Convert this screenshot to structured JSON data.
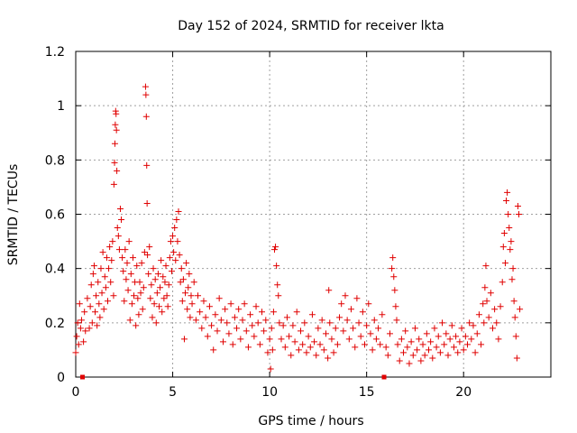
{
  "chart_data": {
    "type": "scatter",
    "title": "Day 152 of 2024, SRMTID for receiver lkta",
    "xlabel": "GPS time / hours",
    "ylabel": "SRMTID / TECUs",
    "xlim": [
      0,
      24.5
    ],
    "ylim": [
      0,
      1.2
    ],
    "xticks": [
      0,
      5,
      10,
      15,
      20
    ],
    "xtick_labels": [
      "0",
      "5",
      "10",
      "15",
      "20"
    ],
    "yticks": [
      0,
      0.2,
      0.4,
      0.6,
      0.8,
      1.0,
      1.2
    ],
    "ytick_labels": [
      "0",
      "0.2",
      "0.4",
      "0.6",
      "0.8",
      "1",
      "1.2"
    ],
    "grid": true,
    "marker": "+",
    "color": "#e00000",
    "gap_markers_x": [
      0.35,
      15.9
    ],
    "series": [
      {
        "name": "SRMTID",
        "points": [
          [
            0.0,
            0.09
          ],
          [
            0.05,
            0.15
          ],
          [
            0.1,
            0.2
          ],
          [
            0.15,
            0.12
          ],
          [
            0.2,
            0.27
          ],
          [
            0.25,
            0.18
          ],
          [
            0.3,
            0.21
          ],
          [
            0.4,
            0.13
          ],
          [
            0.45,
            0.24
          ],
          [
            0.5,
            0.17
          ],
          [
            0.6,
            0.29
          ],
          [
            0.7,
            0.18
          ],
          [
            0.75,
            0.26
          ],
          [
            0.8,
            0.34
          ],
          [
            0.85,
            0.2
          ],
          [
            0.9,
            0.38
          ],
          [
            0.95,
            0.41
          ],
          [
            1.0,
            0.24
          ],
          [
            1.05,
            0.3
          ],
          [
            1.1,
            0.19
          ],
          [
            1.15,
            0.35
          ],
          [
            1.2,
            0.27
          ],
          [
            1.25,
            0.22
          ],
          [
            1.3,
            0.4
          ],
          [
            1.35,
            0.31
          ],
          [
            1.4,
            0.46
          ],
          [
            1.45,
            0.25
          ],
          [
            1.5,
            0.37
          ],
          [
            1.55,
            0.33
          ],
          [
            1.6,
            0.44
          ],
          [
            1.65,
            0.28
          ],
          [
            1.7,
            0.4
          ],
          [
            1.75,
            0.48
          ],
          [
            1.8,
            0.35
          ],
          [
            1.85,
            0.43
          ],
          [
            1.9,
            0.5
          ],
          [
            1.95,
            0.3
          ],
          [
            1.97,
            0.71
          ],
          [
            2.0,
            0.79
          ],
          [
            2.02,
            0.86
          ],
          [
            2.04,
            0.93
          ],
          [
            2.06,
            0.98
          ],
          [
            2.08,
            0.97
          ],
          [
            2.1,
            0.91
          ],
          [
            2.12,
            0.76
          ],
          [
            2.15,
            0.55
          ],
          [
            2.2,
            0.52
          ],
          [
            2.25,
            0.47
          ],
          [
            2.3,
            0.62
          ],
          [
            2.35,
            0.58
          ],
          [
            2.4,
            0.44
          ],
          [
            2.45,
            0.39
          ],
          [
            2.5,
            0.28
          ],
          [
            2.55,
            0.47
          ],
          [
            2.6,
            0.36
          ],
          [
            2.65,
            0.42
          ],
          [
            2.7,
            0.32
          ],
          [
            2.75,
            0.5
          ],
          [
            2.8,
            0.21
          ],
          [
            2.85,
            0.38
          ],
          [
            2.9,
            0.27
          ],
          [
            2.95,
            0.44
          ],
          [
            3.0,
            0.3
          ],
          [
            3.05,
            0.35
          ],
          [
            3.1,
            0.19
          ],
          [
            3.15,
            0.41
          ],
          [
            3.2,
            0.29
          ],
          [
            3.25,
            0.23
          ],
          [
            3.3,
            0.35
          ],
          [
            3.35,
            0.31
          ],
          [
            3.4,
            0.42
          ],
          [
            3.45,
            0.25
          ],
          [
            3.5,
            0.33
          ],
          [
            3.55,
            0.46
          ],
          [
            3.6,
            1.07
          ],
          [
            3.62,
            1.04
          ],
          [
            3.64,
            0.96
          ],
          [
            3.66,
            0.78
          ],
          [
            3.68,
            0.64
          ],
          [
            3.7,
            0.45
          ],
          [
            3.75,
            0.38
          ],
          [
            3.8,
            0.48
          ],
          [
            3.85,
            0.29
          ],
          [
            3.9,
            0.34
          ],
          [
            3.95,
            0.22
          ],
          [
            4.0,
            0.4
          ],
          [
            4.05,
            0.27
          ],
          [
            4.1,
            0.36
          ],
          [
            4.15,
            0.2
          ],
          [
            4.2,
            0.31
          ],
          [
            4.25,
            0.38
          ],
          [
            4.3,
            0.26
          ],
          [
            4.35,
            0.33
          ],
          [
            4.4,
            0.43
          ],
          [
            4.45,
            0.24
          ],
          [
            4.5,
            0.37
          ],
          [
            4.55,
            0.29
          ],
          [
            4.6,
            0.35
          ],
          [
            4.65,
            0.41
          ],
          [
            4.7,
            0.3
          ],
          [
            4.75,
            0.26
          ],
          [
            4.8,
            0.34
          ],
          [
            4.85,
            0.44
          ],
          [
            4.9,
            0.5
          ],
          [
            4.95,
            0.39
          ],
          [
            5.0,
            0.52
          ],
          [
            5.05,
            0.46
          ],
          [
            5.1,
            0.55
          ],
          [
            5.15,
            0.43
          ],
          [
            5.2,
            0.58
          ],
          [
            5.25,
            0.5
          ],
          [
            5.3,
            0.61
          ],
          [
            5.35,
            0.45
          ],
          [
            5.4,
            0.35
          ],
          [
            5.45,
            0.4
          ],
          [
            5.5,
            0.28
          ],
          [
            5.55,
            0.36
          ],
          [
            5.6,
            0.14
          ],
          [
            5.65,
            0.31
          ],
          [
            5.7,
            0.42
          ],
          [
            5.75,
            0.25
          ],
          [
            5.8,
            0.33
          ],
          [
            5.85,
            0.38
          ],
          [
            5.9,
            0.22
          ],
          [
            5.95,
            0.3
          ],
          [
            6.0,
            0.27
          ],
          [
            6.1,
            0.35
          ],
          [
            6.2,
            0.21
          ],
          [
            6.3,
            0.3
          ],
          [
            6.4,
            0.24
          ],
          [
            6.5,
            0.18
          ],
          [
            6.6,
            0.28
          ],
          [
            6.7,
            0.22
          ],
          [
            6.8,
            0.15
          ],
          [
            6.9,
            0.26
          ],
          [
            7.0,
            0.19
          ],
          [
            7.1,
            0.1
          ],
          [
            7.2,
            0.23
          ],
          [
            7.3,
            0.17
          ],
          [
            7.4,
            0.29
          ],
          [
            7.5,
            0.21
          ],
          [
            7.6,
            0.13
          ],
          [
            7.7,
            0.25
          ],
          [
            7.8,
            0.2
          ],
          [
            7.9,
            0.16
          ],
          [
            8.0,
            0.27
          ],
          [
            8.1,
            0.12
          ],
          [
            8.2,
            0.22
          ],
          [
            8.3,
            0.18
          ],
          [
            8.4,
            0.25
          ],
          [
            8.5,
            0.14
          ],
          [
            8.6,
            0.21
          ],
          [
            8.7,
            0.27
          ],
          [
            8.8,
            0.17
          ],
          [
            8.9,
            0.11
          ],
          [
            9.0,
            0.23
          ],
          [
            9.1,
            0.19
          ],
          [
            9.2,
            0.15
          ],
          [
            9.3,
            0.26
          ],
          [
            9.4,
            0.2
          ],
          [
            9.5,
            0.12
          ],
          [
            9.6,
            0.24
          ],
          [
            9.7,
            0.17
          ],
          [
            9.8,
            0.21
          ],
          [
            9.9,
            0.09
          ],
          [
            10.0,
            0.14
          ],
          [
            10.05,
            0.03
          ],
          [
            10.1,
            0.18
          ],
          [
            10.15,
            0.1
          ],
          [
            10.2,
            0.24
          ],
          [
            10.25,
            0.47
          ],
          [
            10.3,
            0.48
          ],
          [
            10.35,
            0.41
          ],
          [
            10.4,
            0.34
          ],
          [
            10.45,
            0.3
          ],
          [
            10.5,
            0.2
          ],
          [
            10.6,
            0.14
          ],
          [
            10.7,
            0.19
          ],
          [
            10.8,
            0.11
          ],
          [
            10.9,
            0.22
          ],
          [
            11.0,
            0.15
          ],
          [
            11.1,
            0.08
          ],
          [
            11.2,
            0.19
          ],
          [
            11.3,
            0.13
          ],
          [
            11.4,
            0.24
          ],
          [
            11.5,
            0.1
          ],
          [
            11.6,
            0.17
          ],
          [
            11.7,
            0.12
          ],
          [
            11.8,
            0.2
          ],
          [
            11.9,
            0.09
          ],
          [
            12.0,
            0.15
          ],
          [
            12.1,
            0.11
          ],
          [
            12.2,
            0.23
          ],
          [
            12.3,
            0.13
          ],
          [
            12.4,
            0.08
          ],
          [
            12.5,
            0.18
          ],
          [
            12.6,
            0.12
          ],
          [
            12.7,
            0.21
          ],
          [
            12.8,
            0.1
          ],
          [
            12.9,
            0.16
          ],
          [
            13.0,
            0.07
          ],
          [
            13.05,
            0.32
          ],
          [
            13.1,
            0.2
          ],
          [
            13.2,
            0.14
          ],
          [
            13.3,
            0.09
          ],
          [
            13.4,
            0.18
          ],
          [
            13.5,
            0.12
          ],
          [
            13.6,
            0.22
          ],
          [
            13.7,
            0.27
          ],
          [
            13.8,
            0.17
          ],
          [
            13.9,
            0.3
          ],
          [
            14.0,
            0.21
          ],
          [
            14.1,
            0.14
          ],
          [
            14.2,
            0.25
          ],
          [
            14.3,
            0.18
          ],
          [
            14.4,
            0.11
          ],
          [
            14.5,
            0.29
          ],
          [
            14.6,
            0.2
          ],
          [
            14.7,
            0.15
          ],
          [
            14.8,
            0.24
          ],
          [
            14.9,
            0.12
          ],
          [
            15.0,
            0.19
          ],
          [
            15.1,
            0.27
          ],
          [
            15.2,
            0.16
          ],
          [
            15.3,
            0.1
          ],
          [
            15.4,
            0.21
          ],
          [
            15.5,
            0.14
          ],
          [
            15.6,
            0.18
          ],
          [
            15.7,
            0.12
          ],
          [
            15.8,
            0.23
          ],
          [
            16.0,
            0.11
          ],
          [
            16.1,
            0.08
          ],
          [
            16.2,
            0.16
          ],
          [
            16.3,
            0.4
          ],
          [
            16.35,
            0.44
          ],
          [
            16.4,
            0.37
          ],
          [
            16.45,
            0.32
          ],
          [
            16.5,
            0.26
          ],
          [
            16.55,
            0.21
          ],
          [
            16.6,
            0.12
          ],
          [
            16.7,
            0.06
          ],
          [
            16.8,
            0.14
          ],
          [
            16.9,
            0.09
          ],
          [
            17.0,
            0.17
          ],
          [
            17.1,
            0.11
          ],
          [
            17.2,
            0.05
          ],
          [
            17.3,
            0.13
          ],
          [
            17.4,
            0.08
          ],
          [
            17.5,
            0.18
          ],
          [
            17.6,
            0.1
          ],
          [
            17.7,
            0.14
          ],
          [
            17.8,
            0.06
          ],
          [
            17.9,
            0.12
          ],
          [
            18.0,
            0.08
          ],
          [
            18.1,
            0.16
          ],
          [
            18.2,
            0.1
          ],
          [
            18.3,
            0.13
          ],
          [
            18.4,
            0.07
          ],
          [
            18.5,
            0.18
          ],
          [
            18.6,
            0.11
          ],
          [
            18.7,
            0.15
          ],
          [
            18.8,
            0.09
          ],
          [
            18.9,
            0.2
          ],
          [
            19.0,
            0.12
          ],
          [
            19.1,
            0.16
          ],
          [
            19.2,
            0.08
          ],
          [
            19.3,
            0.14
          ],
          [
            19.4,
            0.19
          ],
          [
            19.5,
            0.11
          ],
          [
            19.6,
            0.15
          ],
          [
            19.7,
            0.09
          ],
          [
            19.8,
            0.13
          ],
          [
            19.9,
            0.18
          ],
          [
            20.0,
            0.1
          ],
          [
            20.1,
            0.15
          ],
          [
            20.2,
            0.12
          ],
          [
            20.3,
            0.2
          ],
          [
            20.4,
            0.14
          ],
          [
            20.5,
            0.19
          ],
          [
            20.6,
            0.09
          ],
          [
            20.7,
            0.16
          ],
          [
            20.8,
            0.23
          ],
          [
            20.9,
            0.12
          ],
          [
            21.0,
            0.27
          ],
          [
            21.05,
            0.2
          ],
          [
            21.1,
            0.33
          ],
          [
            21.15,
            0.41
          ],
          [
            21.2,
            0.28
          ],
          [
            21.3,
            0.22
          ],
          [
            21.4,
            0.31
          ],
          [
            21.5,
            0.18
          ],
          [
            21.6,
            0.25
          ],
          [
            21.7,
            0.2
          ],
          [
            21.8,
            0.14
          ],
          [
            21.9,
            0.26
          ],
          [
            22.0,
            0.35
          ],
          [
            22.05,
            0.48
          ],
          [
            22.1,
            0.53
          ],
          [
            22.15,
            0.42
          ],
          [
            22.2,
            0.65
          ],
          [
            22.25,
            0.68
          ],
          [
            22.3,
            0.6
          ],
          [
            22.35,
            0.55
          ],
          [
            22.4,
            0.47
          ],
          [
            22.45,
            0.5
          ],
          [
            22.5,
            0.36
          ],
          [
            22.55,
            0.4
          ],
          [
            22.6,
            0.28
          ],
          [
            22.65,
            0.22
          ],
          [
            22.7,
            0.15
          ],
          [
            22.75,
            0.07
          ],
          [
            22.8,
            0.63
          ],
          [
            22.85,
            0.6
          ],
          [
            22.9,
            0.25
          ]
        ]
      }
    ]
  }
}
